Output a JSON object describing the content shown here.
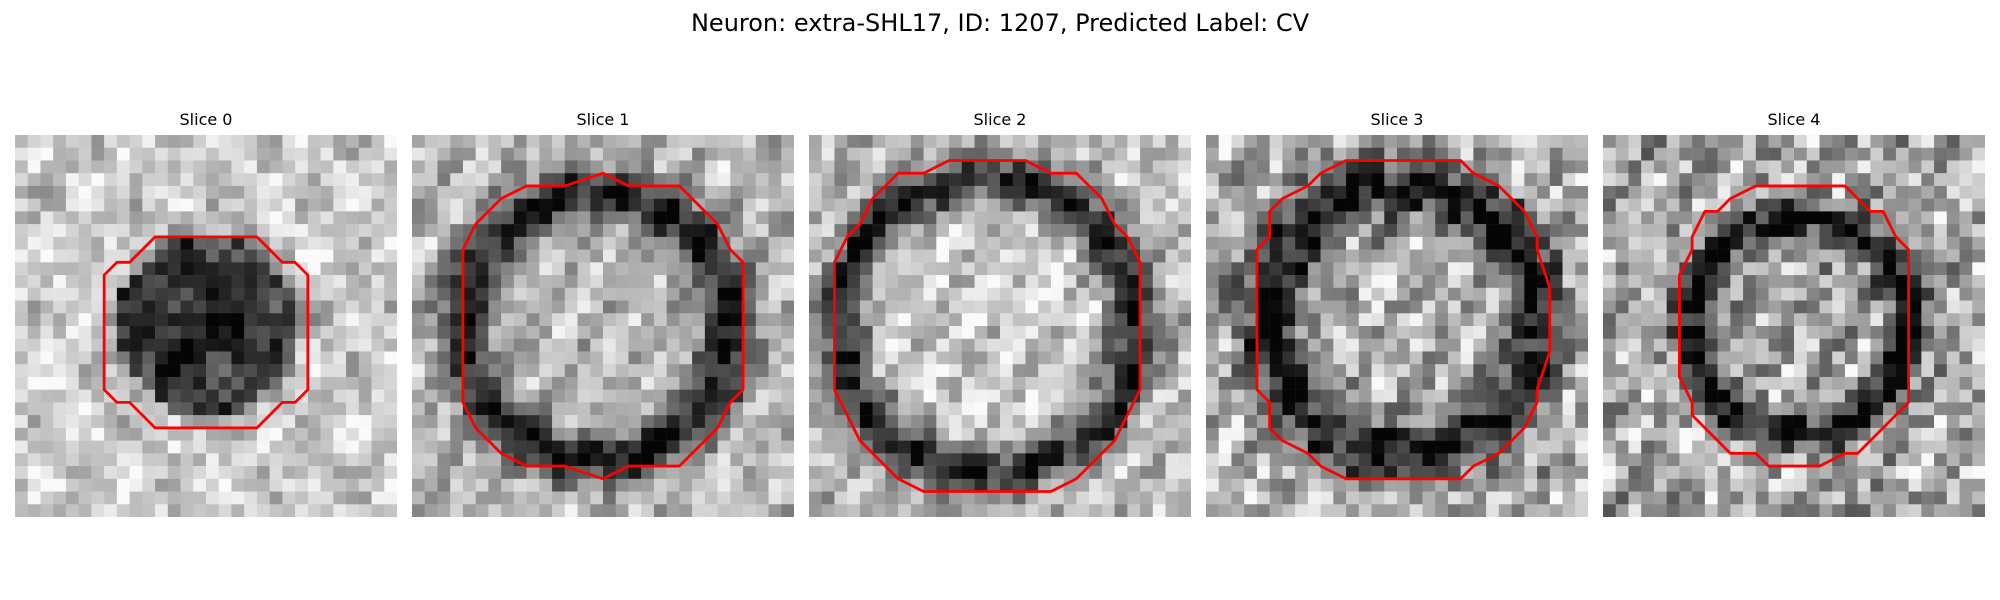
{
  "figure": {
    "title": "Neuron: extra-SHL17, ID: 1207, Predicted Label: CV",
    "contour_color": "#ff0000"
  },
  "slices": [
    {
      "title": "Slice 0",
      "tone": "dark-blob"
    },
    {
      "title": "Slice 1",
      "tone": "ring"
    },
    {
      "title": "Slice 2",
      "tone": "ring-lobed"
    },
    {
      "title": "Slice 3",
      "tone": "noisy-ring"
    },
    {
      "title": "Slice 4",
      "tone": "noisy-light"
    }
  ]
}
